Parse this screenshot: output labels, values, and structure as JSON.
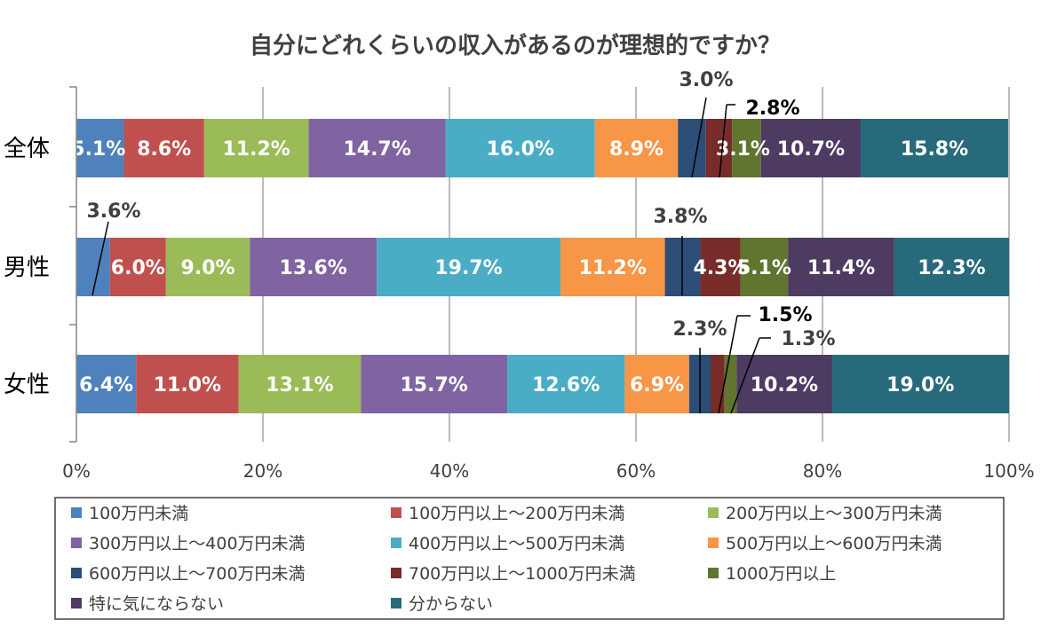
{
  "chart_data": {
    "type": "bar",
    "orientation": "horizontal-stacked-100",
    "title": "自分にどれくらいの収入があるのが理想的ですか？",
    "categories": [
      "全体",
      "男性",
      "女性"
    ],
    "x_ticks": [
      "0%",
      "20%",
      "40%",
      "60%",
      "80%",
      "100%"
    ],
    "xlim": [
      0,
      100
    ],
    "legend_position": "bottom",
    "series": [
      {
        "name": "100万円未満",
        "color": "#4f81bd",
        "values": [
          5.1,
          3.6,
          6.4
        ],
        "labels": [
          "5.1%",
          "3.6%",
          "6.4%"
        ]
      },
      {
        "name": "100万円以上～200万円未満",
        "color": "#c0504d",
        "values": [
          8.6,
          6.0,
          11.0
        ],
        "labels": [
          "8.6%",
          "6.0%",
          "11.0%"
        ]
      },
      {
        "name": "200万円以上～300万円未満",
        "color": "#9bbb59",
        "values": [
          11.2,
          9.0,
          13.1
        ],
        "labels": [
          "11.2%",
          "9.0%",
          "13.1%"
        ]
      },
      {
        "name": "300万円以上～400万円未満",
        "color": "#8064a2",
        "values": [
          14.7,
          13.6,
          15.7
        ],
        "labels": [
          "14.7%",
          "13.6%",
          "15.7%"
        ]
      },
      {
        "name": "400万円以上～500万円未満",
        "color": "#4bacc6",
        "values": [
          16.0,
          19.7,
          12.6
        ],
        "labels": [
          "16.0%",
          "19.7%",
          "12.6%"
        ]
      },
      {
        "name": "500万円以上～600万円未満",
        "color": "#f79646",
        "values": [
          8.9,
          11.2,
          6.9
        ],
        "labels": [
          "8.9%",
          "11.2%",
          "6.9%"
        ]
      },
      {
        "name": "600万円以上～700万円未満",
        "color": "#2c4d75",
        "values": [
          3.0,
          3.8,
          2.3
        ],
        "labels": [
          "3.0%",
          "3.8%",
          "2.3%"
        ]
      },
      {
        "name": "700万円以上～1000万円未満",
        "color": "#772c2a",
        "values": [
          2.8,
          4.3,
          1.5
        ],
        "labels": [
          "2.8%",
          "4.3%",
          "1.5%"
        ]
      },
      {
        "name": "1000万円以上",
        "color": "#5f7530",
        "values": [
          3.1,
          5.1,
          1.3
        ],
        "labels": [
          "3.1%",
          "5.1%",
          "1.3%"
        ]
      },
      {
        "name": "特に気にならない",
        "color": "#4d3b62",
        "values": [
          10.7,
          11.4,
          10.2
        ],
        "labels": [
          "10.7%",
          "11.4%",
          "10.2%"
        ]
      },
      {
        "name": "分からない",
        "color": "#276a7c",
        "values": [
          15.8,
          12.3,
          19.0
        ],
        "labels": [
          "15.8%",
          "12.3%",
          "19.0%"
        ]
      }
    ]
  }
}
